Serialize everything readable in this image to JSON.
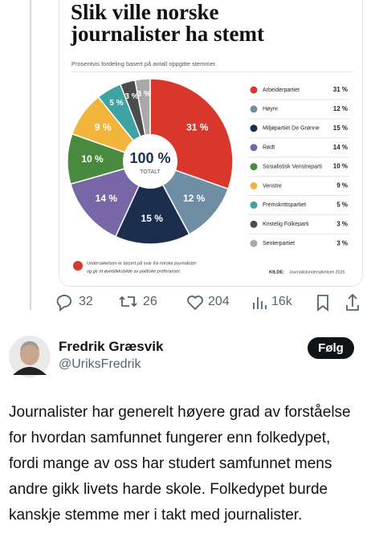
{
  "chart_data": {
    "type": "pie",
    "title": "Slik ville norske journalister ha stemt",
    "subtitle": "Prosentvis fordeling basert på antall oppgitte stemmer.",
    "center_value": "100 %",
    "center_label": "TOTALT",
    "categories": [
      "Arbeiderpartiet",
      "Høyre",
      "Miljøpartiet De Grønne",
      "Rødt",
      "Sosialistisk Venstreparti",
      "Venstre",
      "Fremskrittspartiet",
      "Kristelig Folkeparti",
      "Senterpartiet"
    ],
    "values": [
      31,
      12,
      15,
      14,
      10,
      9,
      5,
      3,
      3
    ],
    "value_labels": [
      "31 %",
      "12 %",
      "15 %",
      "14 %",
      "10 %",
      "9 %",
      "5 %",
      "3 %",
      "3 %"
    ],
    "colors": [
      "#d9372b",
      "#6e8ea3",
      "#1b2e4e",
      "#7767a6",
      "#4a8a3f",
      "#f0b53a",
      "#3fa2a3",
      "#4c4c4c",
      "#a9a9a9"
    ],
    "note": [
      "Undersøkelsen er basert på svar fra norske journalister",
      "og gir et øyeblikksbilde av politiske preferanser."
    ],
    "source_label": "KILDE:",
    "source": "Journalistundersøkelsen 2026"
  },
  "actions": {
    "replies": 32,
    "reposts": 26,
    "likes": 204,
    "views": "16k"
  },
  "author": {
    "name": "Fredrik Græsvik",
    "handle": "@UriksFredrik",
    "follow": "Følg"
  },
  "text": "Journalister har generelt høyere grad av forståelse for hvordan samfunnet fungerer enn folkedypet, fordi mange av oss har studert samfunnet mens andre gikk livets harde skole. Folkedypet burde kanskje stemme mer i takt med journalister."
}
